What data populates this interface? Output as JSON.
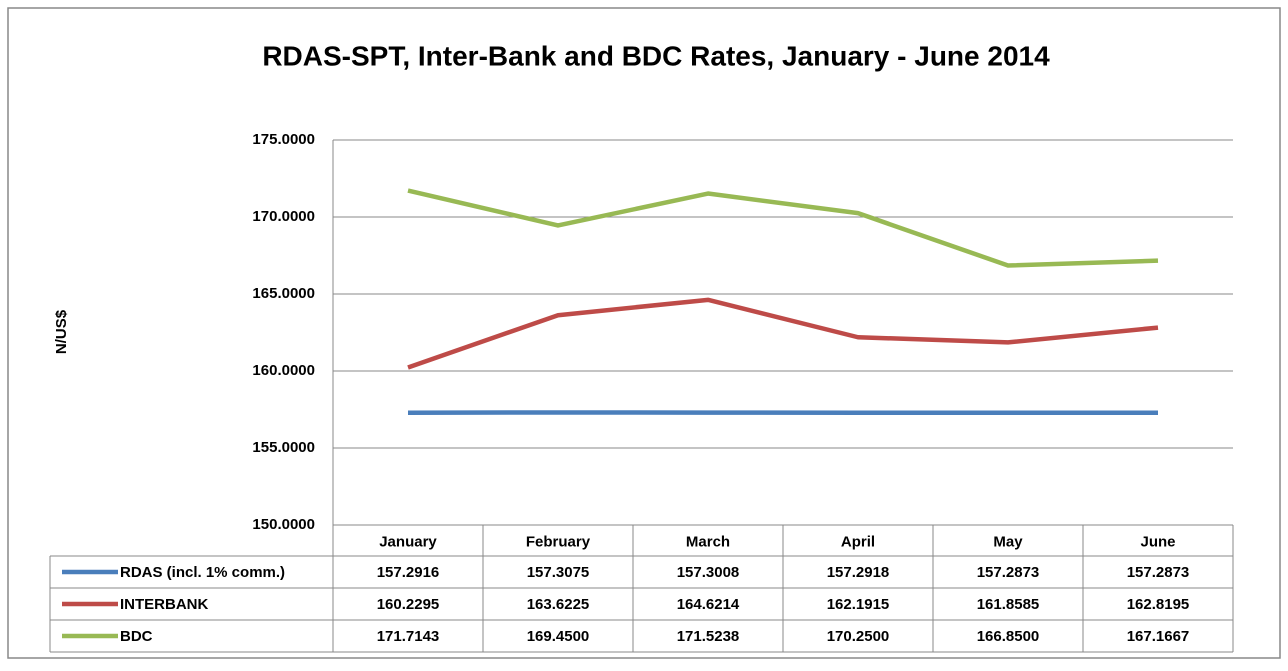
{
  "chart_data": {
    "type": "line",
    "title": "RDAS-SPT, Inter-Bank and BDC Rates, January - June 2014",
    "y_label": "N/US$",
    "categories": [
      "January",
      "February",
      "March",
      "April",
      "May",
      "June"
    ],
    "series": [
      {
        "name": "RDAS (incl. 1% comm.)",
        "color": "#4a7ebb",
        "values": [
          157.2916,
          157.3075,
          157.3008,
          157.2918,
          157.2873,
          157.2873
        ],
        "value_labels": [
          "157.2916",
          "157.3075",
          "157.3008",
          "157.2918",
          "157.2873",
          "157.2873"
        ]
      },
      {
        "name": "INTERBANK",
        "color": "#be4b48",
        "values": [
          160.2295,
          163.6225,
          164.6214,
          162.1915,
          161.8585,
          162.8195
        ],
        "value_labels": [
          "160.2295",
          "163.6225",
          "164.6214",
          "162.1915",
          "161.8585",
          "162.8195"
        ]
      },
      {
        "name": "BDC",
        "color": "#98b954",
        "values": [
          171.7143,
          169.45,
          171.5238,
          170.25,
          166.85,
          167.1667
        ],
        "value_labels": [
          "171.7143",
          "169.4500",
          "171.5238",
          "170.2500",
          "166.8500",
          "167.1667"
        ]
      }
    ],
    "ylim": [
      150,
      175
    ],
    "yticks": [
      {
        "value": 150,
        "label": "150.0000"
      },
      {
        "value": 155,
        "label": "155.0000"
      },
      {
        "value": 160,
        "label": "160.0000"
      },
      {
        "value": 165,
        "label": "165.0000"
      },
      {
        "value": 170,
        "label": "170.0000"
      },
      {
        "value": 175,
        "label": "175.0000"
      }
    ],
    "grid": true
  }
}
